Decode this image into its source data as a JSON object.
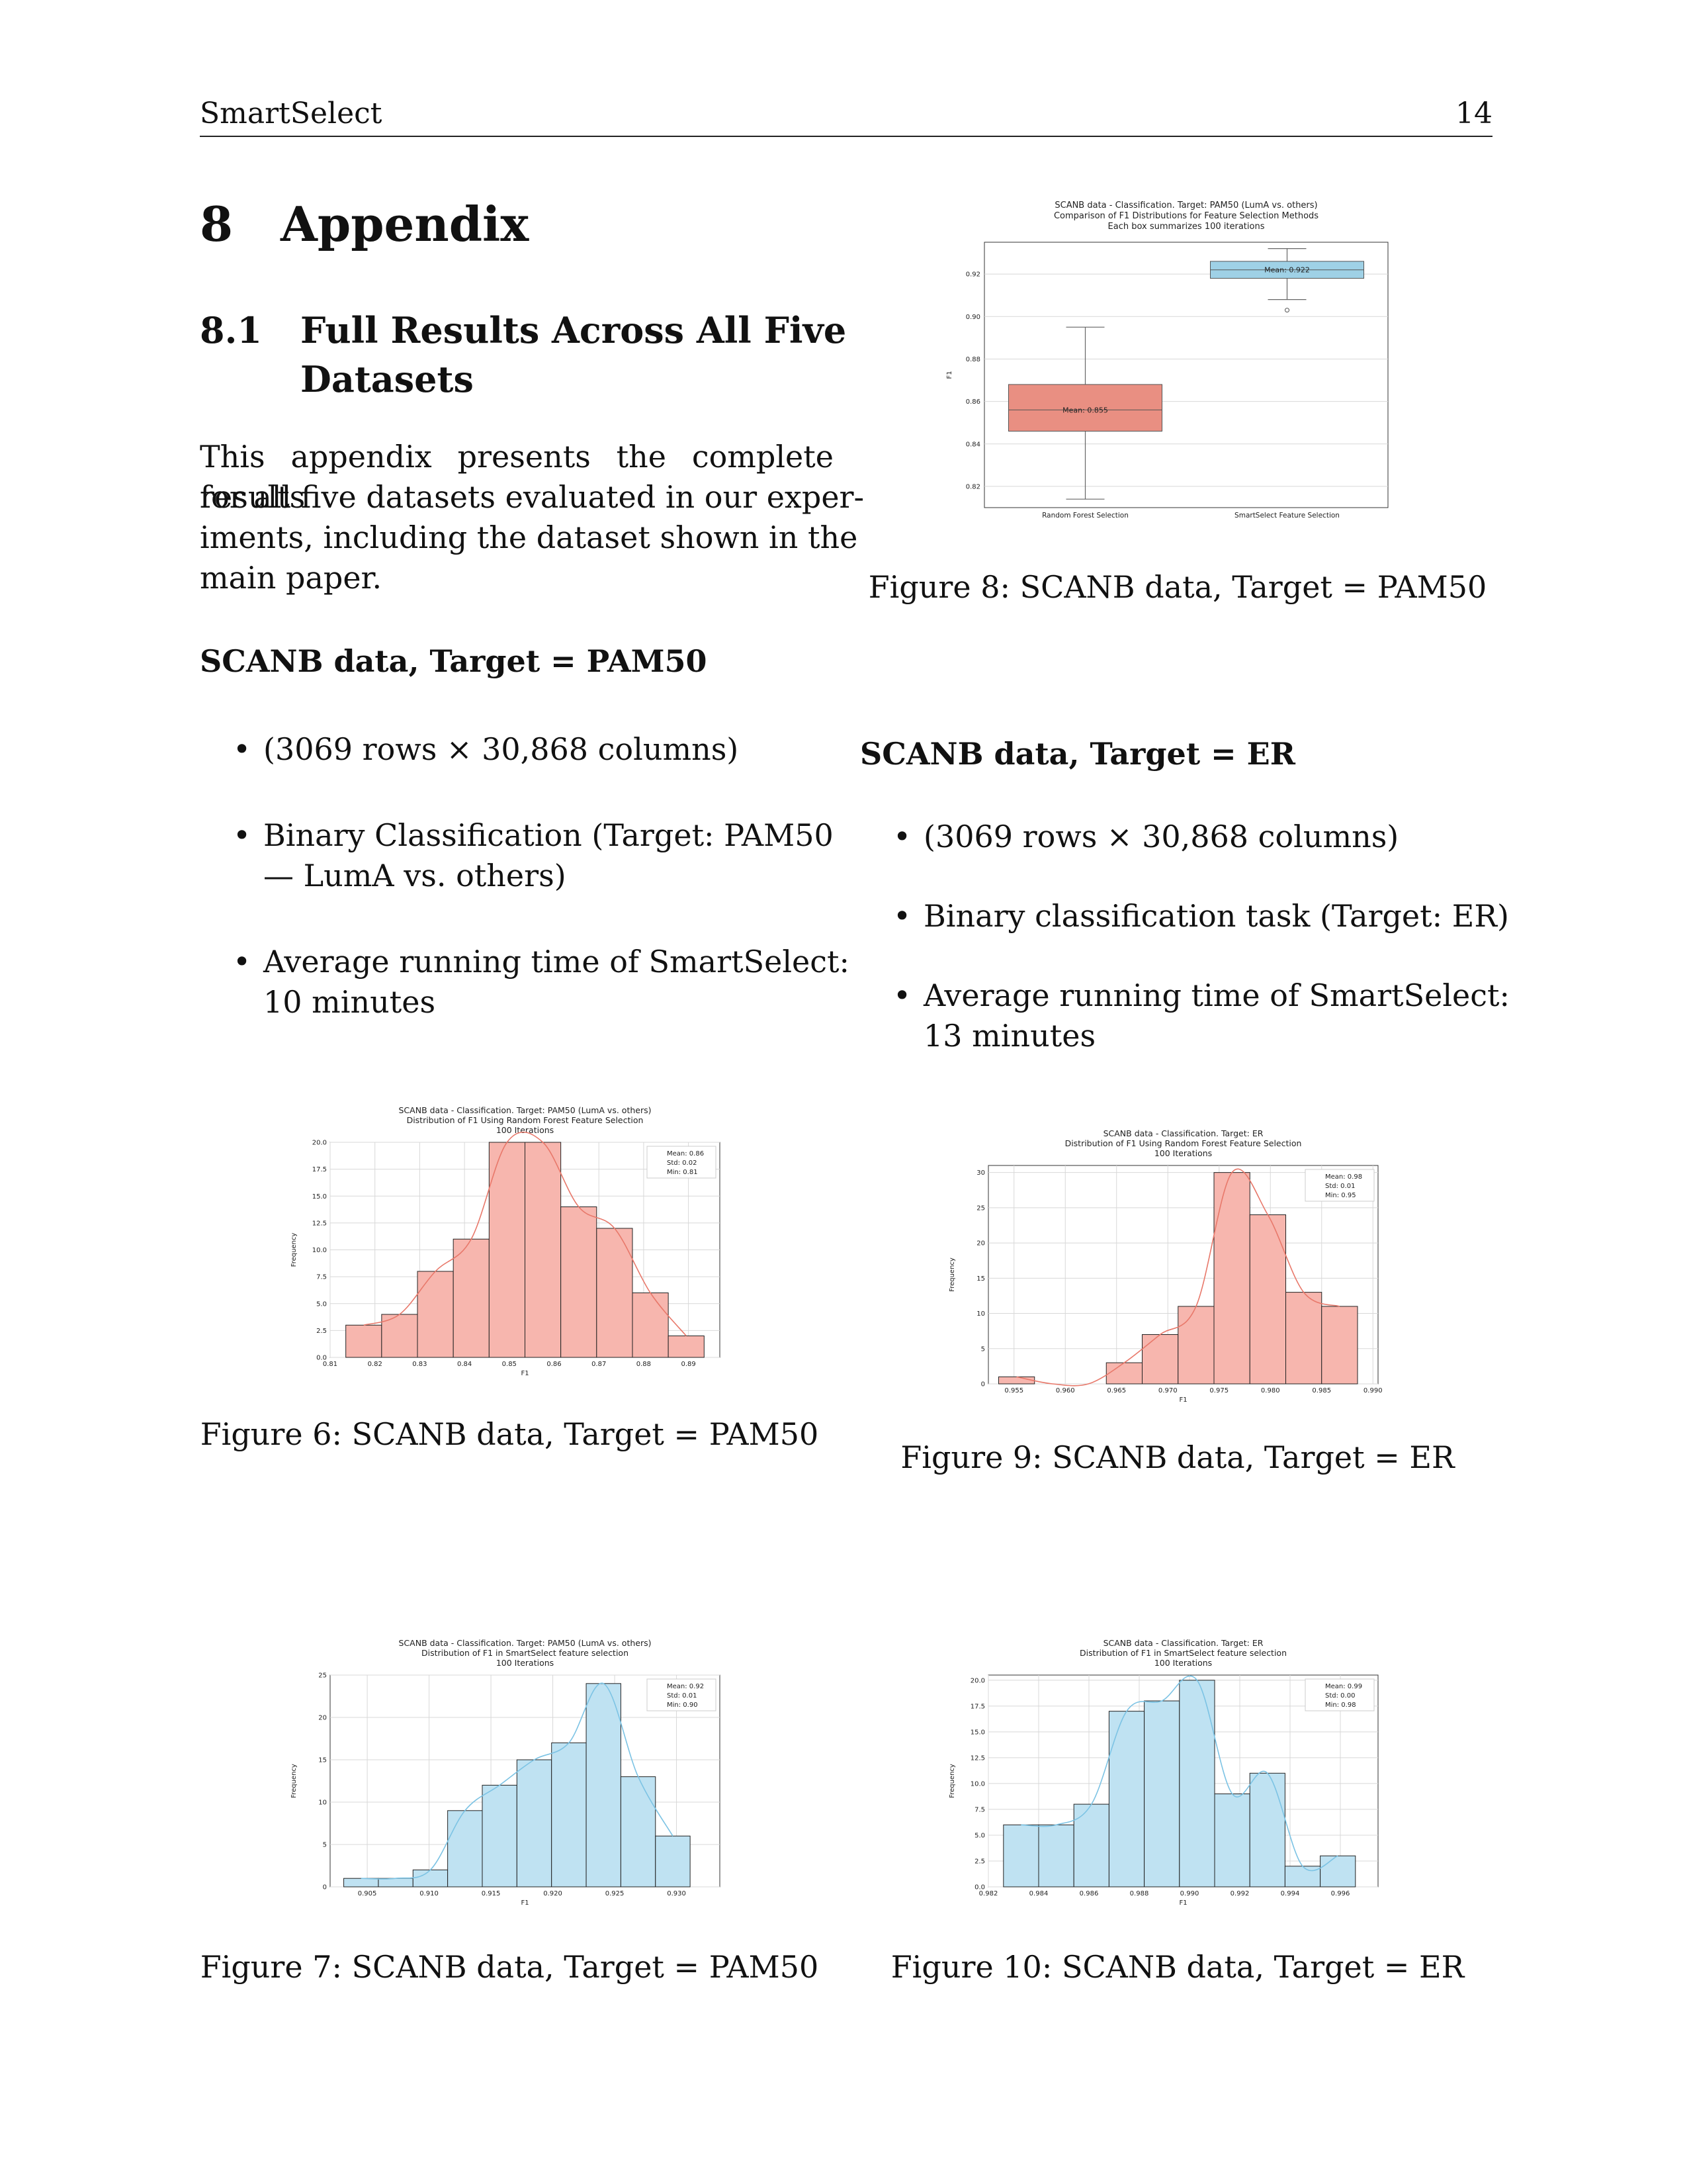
{
  "header": {
    "running_title": "SmartSelect",
    "page_number": "14"
  },
  "section": {
    "number": "8",
    "title": "Appendix"
  },
  "subsection": {
    "number": "8.1",
    "title_line1": "Full Results Across All Five",
    "title_line2": "Datasets"
  },
  "intro_lines": [
    "This appendix presents the complete results",
    "for all five datasets evaluated in our exper-",
    "iments, including the dataset shown in the",
    "main paper."
  ],
  "pam50_block": {
    "heading": "SCANB data, Target = PAM50",
    "bullet1": "(3069 rows × 30,868 columns)",
    "bullet2_line1": "Binary Classification (Target: PAM50",
    "bullet2_line2": "— LumA vs. others)",
    "bullet3_line1": "Average running time of SmartSelect:",
    "bullet3_line2": "10 minutes"
  },
  "er_block": {
    "heading": "SCANB data, Target = ER",
    "bullet1": "(3069 rows × 30,868 columns)",
    "bullet2": "Binary classification task (Target: ER)",
    "bullet3_line1": "Average running time of SmartSelect:",
    "bullet3_line2": "13 minutes"
  },
  "captions": {
    "fig8": "Figure 8: SCANB data, Target = PAM50",
    "fig6": "Figure 6: SCANB data, Target = PAM50",
    "fig9": "Figure 9: SCANB data, Target = ER",
    "fig7": "Figure 7: SCANB data, Target = PAM50",
    "fig10": "Figure 10: SCANB data, Target = ER"
  },
  "colors": {
    "red_fill": "#f7b6ae",
    "red_line": "#e8786a",
    "blue_fill": "#bfe2f2",
    "blue_line": "#7cc3e4",
    "box_red": "#e98f82",
    "box_blue": "#9fd1e6",
    "mean_red": "#d62728",
    "mean_blue": "#1f1fd6"
  },
  "chart_data": [
    {
      "id": "fig8",
      "type": "box",
      "title_lines": [
        "SCANB data - Classification. Target: PAM50 (LumA vs. others)",
        "Comparison of F1 Distributions for Feature Selection Methods",
        "Each box summarizes 100 iterations"
      ],
      "xlabel": "",
      "ylabel": "F1",
      "categories": [
        "Random Forest Selection",
        "SmartSelect Feature Selection"
      ],
      "ylim": [
        0.81,
        0.935
      ],
      "yticks": [
        0.82,
        0.84,
        0.86,
        0.88,
        0.9,
        0.92
      ],
      "boxes": [
        {
          "min": 0.814,
          "q1": 0.846,
          "median": 0.856,
          "q3": 0.868,
          "max": 0.895,
          "mean_label": "Mean: 0.855",
          "outliers": []
        },
        {
          "min": 0.908,
          "q1": 0.918,
          "median": 0.922,
          "q3": 0.926,
          "max": 0.932,
          "mean_label": "Mean: 0.922",
          "outliers": [
            0.903
          ]
        }
      ]
    },
    {
      "id": "fig6",
      "type": "bar",
      "title_lines": [
        "SCANB data - Classification. Target: PAM50 (LumA vs. others)",
        "Distribution of F1 Using Random Forest Feature Selection",
        "100 Iterations"
      ],
      "xlabel": "F1",
      "ylabel": "Frequency",
      "xlim": [
        0.81,
        0.897
      ],
      "ylim": [
        0,
        20
      ],
      "xticks": [
        "0.81",
        "0.82",
        "0.83",
        "0.84",
        "0.85",
        "0.86",
        "0.87",
        "0.88",
        "0.89"
      ],
      "xtick_values": [
        0.81,
        0.82,
        0.83,
        0.84,
        0.85,
        0.86,
        0.87,
        0.88,
        0.89
      ],
      "yticks": [
        "0.0",
        "2.5",
        "5.0",
        "7.5",
        "10.0",
        "12.5",
        "15.0",
        "17.5",
        "20.0"
      ],
      "ytick_values": [
        0,
        2.5,
        5,
        7.5,
        10,
        12.5,
        15,
        17.5,
        20
      ],
      "bin_edges": [
        0.8135,
        0.8215,
        0.8295,
        0.8375,
        0.8455,
        0.8535,
        0.8615,
        0.8695,
        0.8775,
        0.8855,
        0.8935
      ],
      "values": [
        3,
        4,
        8,
        11,
        20,
        20,
        14,
        12,
        6,
        2
      ],
      "legend": [
        "Mean: 0.86",
        "Std: 0.02",
        "Min: 0.81"
      ],
      "palette": "red"
    },
    {
      "id": "fig9",
      "type": "bar",
      "title_lines": [
        "SCANB data - Classification. Target: ER",
        "Distribution of F1 Using Random Forest Feature Selection",
        "100 Iterations"
      ],
      "xlabel": "F1",
      "ylabel": "Frequency",
      "xlim": [
        0.9525,
        0.9905
      ],
      "ylim": [
        0,
        31
      ],
      "xticks": [
        "0.955",
        "0.960",
        "0.965",
        "0.970",
        "0.975",
        "0.980",
        "0.985",
        "0.990"
      ],
      "xtick_values": [
        0.955,
        0.96,
        0.965,
        0.97,
        0.975,
        0.98,
        0.985,
        0.99
      ],
      "yticks": [
        "0",
        "5",
        "10",
        "15",
        "20",
        "25",
        "30"
      ],
      "ytick_values": [
        0,
        5,
        10,
        15,
        20,
        25,
        30
      ],
      "bin_edges": [
        0.9535,
        0.957,
        0.9605,
        0.964,
        0.9675,
        0.971,
        0.9745,
        0.978,
        0.9815,
        0.985,
        0.9885
      ],
      "values": [
        1,
        0,
        0,
        3,
        7,
        11,
        30,
        24,
        13,
        11
      ],
      "legend": [
        "Mean: 0.98",
        "Std: 0.01",
        "Min: 0.95"
      ],
      "palette": "red"
    },
    {
      "id": "fig7",
      "type": "bar",
      "title_lines": [
        "SCANB data - Classification. Target: PAM50 (LumA vs. others)",
        "Distribution of F1 in SmartSelect feature selection",
        "100 Iterations"
      ],
      "xlabel": "F1",
      "ylabel": "Frequency",
      "xlim": [
        0.902,
        0.9335
      ],
      "ylim": [
        0,
        25
      ],
      "xticks": [
        "0.905",
        "0.910",
        "0.915",
        "0.920",
        "0.925",
        "0.930"
      ],
      "xtick_values": [
        0.905,
        0.91,
        0.915,
        0.92,
        0.925,
        0.93
      ],
      "yticks": [
        "0",
        "5",
        "10",
        "15",
        "20",
        "25"
      ],
      "ytick_values": [
        0,
        5,
        10,
        15,
        20,
        25
      ],
      "bin_edges": [
        0.9031,
        0.9059,
        0.9087,
        0.9115,
        0.9143,
        0.9171,
        0.9199,
        0.9227,
        0.9255,
        0.9283,
        0.9311
      ],
      "values": [
        1,
        1,
        2,
        9,
        12,
        15,
        17,
        24,
        13,
        6
      ],
      "legend": [
        "Mean: 0.92",
        "Std: 0.01",
        "Min: 0.90"
      ],
      "palette": "blue"
    },
    {
      "id": "fig10",
      "type": "bar",
      "title_lines": [
        "SCANB data - Classification. Target: ER",
        "Distribution of F1 in SmartSelect feature selection",
        "100 Iterations"
      ],
      "xlabel": "F1",
      "ylabel": "Frequency",
      "xlim": [
        0.982,
        0.9975
      ],
      "ylim": [
        0,
        20.5
      ],
      "xticks": [
        "0.982",
        "0.984",
        "0.986",
        "0.988",
        "0.990",
        "0.992",
        "0.994",
        "0.996"
      ],
      "xtick_values": [
        0.982,
        0.984,
        0.986,
        0.988,
        0.99,
        0.992,
        0.994,
        0.996
      ],
      "yticks": [
        "0.0",
        "2.5",
        "5.0",
        "7.5",
        "10.0",
        "12.5",
        "15.0",
        "17.5",
        "20.0"
      ],
      "ytick_values": [
        0,
        2.5,
        5,
        7.5,
        10,
        12.5,
        15,
        17.5,
        20
      ],
      "bin_edges": [
        0.9826,
        0.984,
        0.9854,
        0.9868,
        0.9882,
        0.9896,
        0.991,
        0.9924,
        0.9938,
        0.9952,
        0.9966
      ],
      "values": [
        6,
        6,
        8,
        17,
        18,
        20,
        9,
        11,
        2,
        3
      ],
      "legend": [
        "Mean: 0.99",
        "Std: 0.00",
        "Min: 0.98"
      ],
      "palette": "blue"
    }
  ]
}
